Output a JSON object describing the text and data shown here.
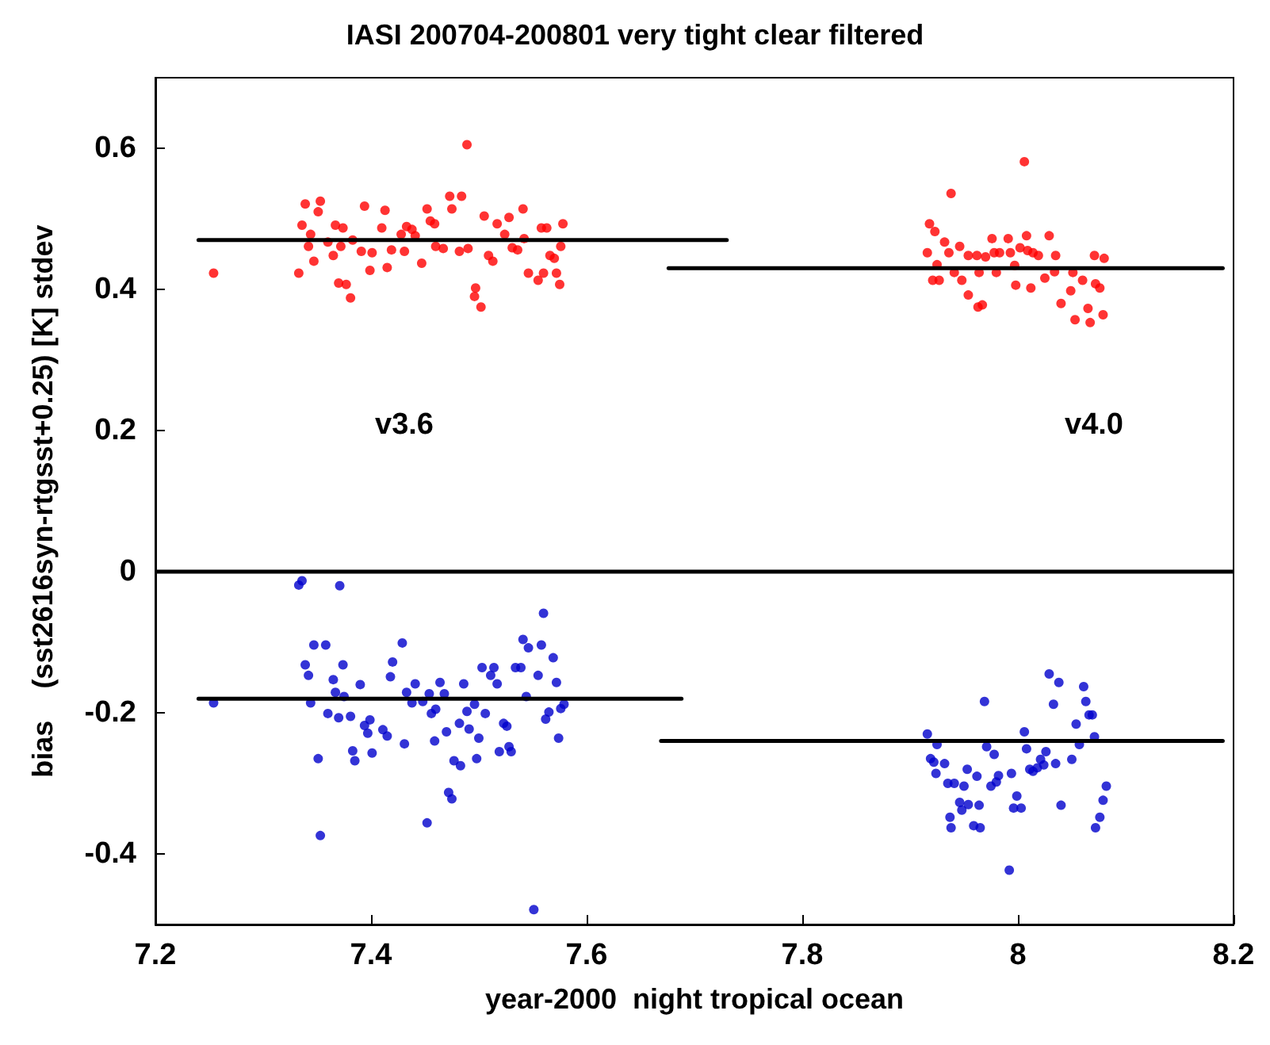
{
  "chart_data": {
    "type": "scatter",
    "title": "IASI 200704-200801 very tight clear filtered",
    "xlabel": "year-2000  night tropical ocean",
    "ylabel": "bias    (sst2616syn-rtgsst+0.25) [K] stdev",
    "xlim": [
      7.2,
      8.2
    ],
    "xticks": [
      7.2,
      7.4,
      7.6,
      7.8,
      {
        "value": 8,
        "label": "8"
      },
      8.2
    ],
    "ylim": [
      -0.5,
      0.7
    ],
    "yticks": [
      -0.4,
      -0.2,
      0,
      0.2,
      0.4,
      0.6
    ],
    "grid": false,
    "marker": "circle",
    "series": [
      {
        "color": "#ff0000",
        "x": [
          7.254,
          7.333,
          7.339,
          7.353,
          7.351,
          7.336,
          7.344,
          7.342,
          7.347,
          7.36,
          7.365,
          7.367,
          7.374,
          7.372,
          7.37,
          7.377,
          7.381,
          7.383,
          7.391,
          7.394,
          7.399,
          7.401,
          7.413,
          7.41,
          7.415,
          7.419,
          7.431,
          7.428,
          7.433,
          7.438,
          7.441,
          7.447,
          7.452,
          7.455,
          7.459,
          7.46,
          7.467,
          7.473,
          7.475,
          7.484,
          7.489,
          7.482,
          7.49,
          7.497,
          7.496,
          7.502,
          7.505,
          7.509,
          7.513,
          7.517,
          7.524,
          7.528,
          7.531,
          7.536,
          7.541,
          7.542,
          7.546,
          7.555,
          7.56,
          7.558,
          7.563,
          7.566,
          7.57,
          7.572,
          7.575,
          7.576,
          7.578,
          7.938,
          8.006,
          7.918,
          7.923,
          7.916,
          7.932,
          7.936,
          7.946,
          7.925,
          7.921,
          7.927,
          7.941,
          7.948,
          7.954,
          7.962,
          7.964,
          7.954,
          7.963,
          7.967,
          7.97,
          7.976,
          7.978,
          7.983,
          7.98,
          7.991,
          7.993,
          7.997,
          8.002,
          8.008,
          8.009,
          8.014,
          8.019,
          7.998,
          8.012,
          8.025,
          8.029,
          8.035,
          8.034,
          8.04,
          8.049,
          8.051,
          8.06,
          8.053,
          8.065,
          8.067,
          8.071,
          8.08,
          8.072,
          8.076,
          8.079
        ],
        "values": [
          0.423,
          0.423,
          0.521,
          0.525,
          0.51,
          0.491,
          0.478,
          0.461,
          0.44,
          0.467,
          0.448,
          0.491,
          0.487,
          0.461,
          0.409,
          0.407,
          0.388,
          0.47,
          0.454,
          0.518,
          0.427,
          0.452,
          0.512,
          0.487,
          0.431,
          0.456,
          0.454,
          0.478,
          0.489,
          0.485,
          0.476,
          0.437,
          0.514,
          0.497,
          0.493,
          0.461,
          0.458,
          0.532,
          0.514,
          0.532,
          0.605,
          0.454,
          0.458,
          0.402,
          0.39,
          0.375,
          0.504,
          0.448,
          0.44,
          0.493,
          0.478,
          0.502,
          0.459,
          0.456,
          0.514,
          0.472,
          0.423,
          0.413,
          0.423,
          0.487,
          0.487,
          0.448,
          0.444,
          0.423,
          0.407,
          0.461,
          0.493,
          0.536,
          0.581,
          0.493,
          0.482,
          0.452,
          0.467,
          0.452,
          0.461,
          0.435,
          0.413,
          0.413,
          0.424,
          0.413,
          0.448,
          0.448,
          0.424,
          0.392,
          0.375,
          0.378,
          0.446,
          0.472,
          0.452,
          0.452,
          0.424,
          0.472,
          0.452,
          0.434,
          0.459,
          0.476,
          0.455,
          0.452,
          0.448,
          0.406,
          0.402,
          0.416,
          0.476,
          0.448,
          0.425,
          0.38,
          0.398,
          0.424,
          0.413,
          0.357,
          0.373,
          0.353,
          0.448,
          0.444,
          0.408,
          0.402,
          0.364
        ]
      },
      {
        "color": "#0000cc",
        "x": [
          7.254,
          7.333,
          7.336,
          7.371,
          7.347,
          7.358,
          7.339,
          7.342,
          7.344,
          7.374,
          7.365,
          7.367,
          7.375,
          7.36,
          7.37,
          7.381,
          7.351,
          7.353,
          7.383,
          7.385,
          7.39,
          7.394,
          7.397,
          7.399,
          7.401,
          7.411,
          7.415,
          7.418,
          7.42,
          7.429,
          7.431,
          7.433,
          7.438,
          7.441,
          7.448,
          7.454,
          7.452,
          7.456,
          7.46,
          7.464,
          7.468,
          7.459,
          7.47,
          7.472,
          7.475,
          7.477,
          7.483,
          7.482,
          7.486,
          7.489,
          7.491,
          7.496,
          7.498,
          7.5,
          7.503,
          7.506,
          7.511,
          7.514,
          7.517,
          7.519,
          7.523,
          7.526,
          7.528,
          7.53,
          7.534,
          7.539,
          7.541,
          7.546,
          7.544,
          7.551,
          7.555,
          7.558,
          7.56,
          7.562,
          7.565,
          7.569,
          7.572,
          7.574,
          7.576,
          7.579,
          7.916,
          7.925,
          7.919,
          7.922,
          7.924,
          7.932,
          7.935,
          7.941,
          7.95,
          7.953,
          7.962,
          7.946,
          7.948,
          7.954,
          7.964,
          7.937,
          7.938,
          7.959,
          7.965,
          7.969,
          7.971,
          7.978,
          7.975,
          7.98,
          7.982,
          7.994,
          7.992,
          7.999,
          7.996,
          8.003,
          8.006,
          8.008,
          8.011,
          8.014,
          8.018,
          8.021,
          8.024,
          8.026,
          8.029,
          8.038,
          8.033,
          8.035,
          8.04,
          8.05,
          8.054,
          8.057,
          8.061,
          8.063,
          8.066,
          8.069,
          8.071,
          8.082,
          8.079,
          8.076,
          8.072
        ],
        "values": [
          -0.186,
          -0.019,
          -0.013,
          -0.02,
          -0.104,
          -0.104,
          -0.132,
          -0.147,
          -0.186,
          -0.132,
          -0.153,
          -0.171,
          -0.177,
          -0.201,
          -0.207,
          -0.205,
          -0.265,
          -0.374,
          -0.254,
          -0.268,
          -0.16,
          -0.218,
          -0.229,
          -0.21,
          -0.257,
          -0.224,
          -0.233,
          -0.149,
          -0.128,
          -0.101,
          -0.244,
          -0.171,
          -0.186,
          -0.159,
          -0.184,
          -0.173,
          -0.356,
          -0.201,
          -0.195,
          -0.157,
          -0.173,
          -0.24,
          -0.227,
          -0.313,
          -0.322,
          -0.268,
          -0.275,
          -0.215,
          -0.159,
          -0.198,
          -0.223,
          -0.188,
          -0.265,
          -0.236,
          -0.136,
          -0.201,
          -0.147,
          -0.136,
          -0.159,
          -0.255,
          -0.215,
          -0.219,
          -0.248,
          -0.255,
          -0.136,
          -0.136,
          -0.096,
          -0.108,
          -0.177,
          -0.479,
          -0.147,
          -0.104,
          -0.059,
          -0.209,
          -0.199,
          -0.122,
          -0.157,
          -0.236,
          -0.194,
          -0.188,
          -0.23,
          -0.245,
          -0.265,
          -0.27,
          -0.286,
          -0.272,
          -0.3,
          -0.3,
          -0.304,
          -0.28,
          -0.29,
          -0.327,
          -0.338,
          -0.33,
          -0.331,
          -0.348,
          -0.363,
          -0.36,
          -0.363,
          -0.184,
          -0.248,
          -0.259,
          -0.304,
          -0.298,
          -0.289,
          -0.286,
          -0.423,
          -0.318,
          -0.335,
          -0.335,
          -0.227,
          -0.251,
          -0.28,
          -0.283,
          -0.278,
          -0.266,
          -0.274,
          -0.255,
          -0.145,
          -0.157,
          -0.188,
          -0.272,
          -0.331,
          -0.266,
          -0.216,
          -0.245,
          -0.163,
          -0.184,
          -0.203,
          -0.203,
          -0.234,
          -0.304,
          -0.324,
          -0.348,
          -0.363
        ]
      },
      {
        "type": "line",
        "color": "#000000",
        "marker": "none",
        "x": [
          7.24,
          7.73
        ],
        "values": [
          0.47,
          0.47
        ]
      },
      {
        "type": "line",
        "color": "#000000",
        "marker": "none",
        "x": [
          7.676,
          8.19
        ],
        "values": [
          0.43,
          0.43
        ]
      },
      {
        "type": "line",
        "color": "#000000",
        "marker": "none",
        "x": [
          7.24,
          7.688
        ],
        "values": [
          -0.18,
          -0.18
        ]
      },
      {
        "type": "line",
        "color": "#000000",
        "marker": "none",
        "x": [
          7.669,
          8.19
        ],
        "values": [
          -0.24,
          -0.24
        ]
      }
    ],
    "ref_lines": [
      {
        "axis": "y",
        "value": 0,
        "color": "#000000"
      }
    ],
    "annotations": [
      "v3.6",
      "v4.0"
    ]
  }
}
